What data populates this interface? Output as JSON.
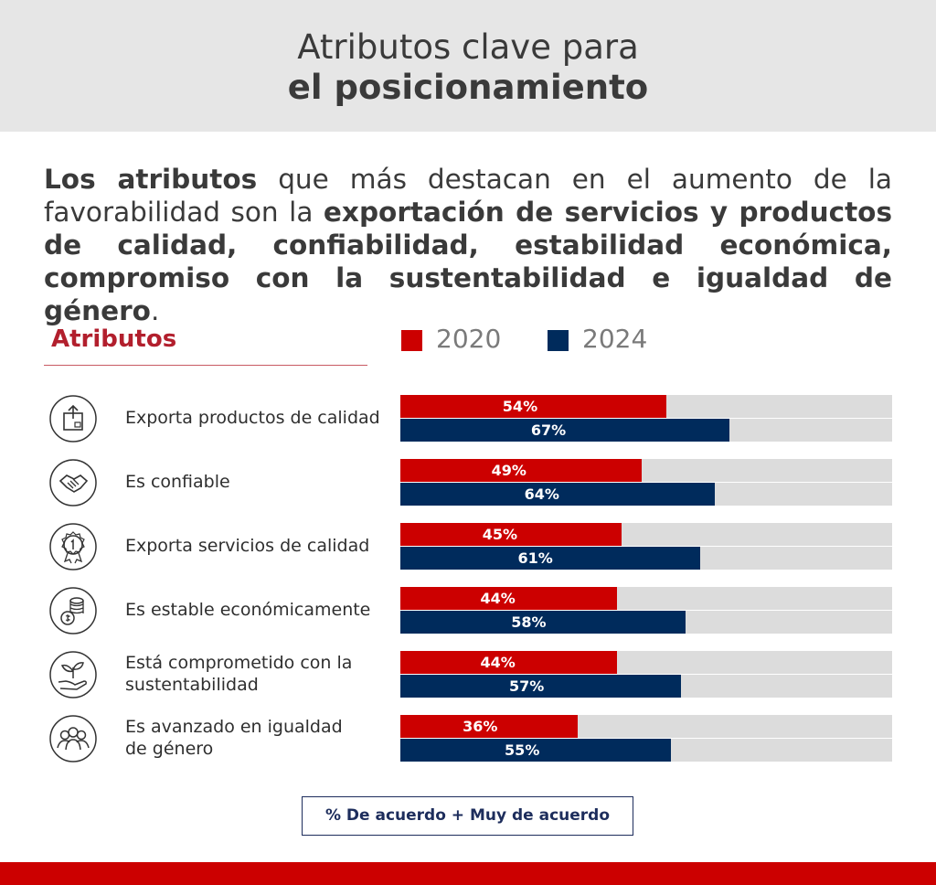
{
  "header": {
    "title_line1": "Atributos clave para",
    "title_line2": "el posicionamiento"
  },
  "intro": {
    "segments": [
      {
        "text": "Los atributos",
        "bold": true
      },
      {
        "text": " que más destacan en el aumento de la favorabilidad son la ",
        "bold": false
      },
      {
        "text": "exportación de servicios y productos de calidad, confiabilidad, estabilidad económica, compromiso con la sustentabilidad e igualdad de género",
        "bold": true
      },
      {
        "text": ".",
        "bold": false
      }
    ]
  },
  "attributes_heading": "Atributos",
  "colors": {
    "accent": "#b21f2d",
    "series_2020": "#cc0000",
    "series_2024": "#002b5c",
    "track": "#dcdcdc",
    "header_bg": "#e6e6e6"
  },
  "footnote": "% De acuerdo + Muy de acuerdo",
  "chart_data": {
    "type": "bar",
    "orientation": "horizontal",
    "categories": [
      "Exporta productos de calidad",
      "Es confiable",
      "Exporta servicios de calidad",
      "Es estable económicamente",
      "Está comprometido con la sustentabilidad",
      "Es avanzado en igualdad de género"
    ],
    "category_lines": [
      [
        "Exporta productos de calidad"
      ],
      [
        "Es confiable"
      ],
      [
        "Exporta servicios de calidad"
      ],
      [
        "Es estable económicamente"
      ],
      [
        "Está comprometido con la",
        "sustentabilidad"
      ],
      [
        "Es avanzado en igualdad",
        "de género"
      ]
    ],
    "icons": [
      "box-upload-icon",
      "handshake-icon",
      "award-badge-icon",
      "coins-icon",
      "plant-hand-icon",
      "people-group-icon"
    ],
    "series": [
      {
        "name": "2020",
        "values": [
          54,
          49,
          45,
          44,
          44,
          36
        ],
        "labels": [
          "54%",
          "49%",
          "45%",
          "44%",
          "44%",
          "36%"
        ]
      },
      {
        "name": "2024",
        "values": [
          67,
          64,
          61,
          58,
          57,
          55
        ],
        "labels": [
          "67%",
          "64%",
          "61%",
          "58%",
          "57%",
          "55%"
        ]
      }
    ],
    "xlim": [
      0,
      100
    ],
    "legend_position": "top",
    "grid": false
  }
}
